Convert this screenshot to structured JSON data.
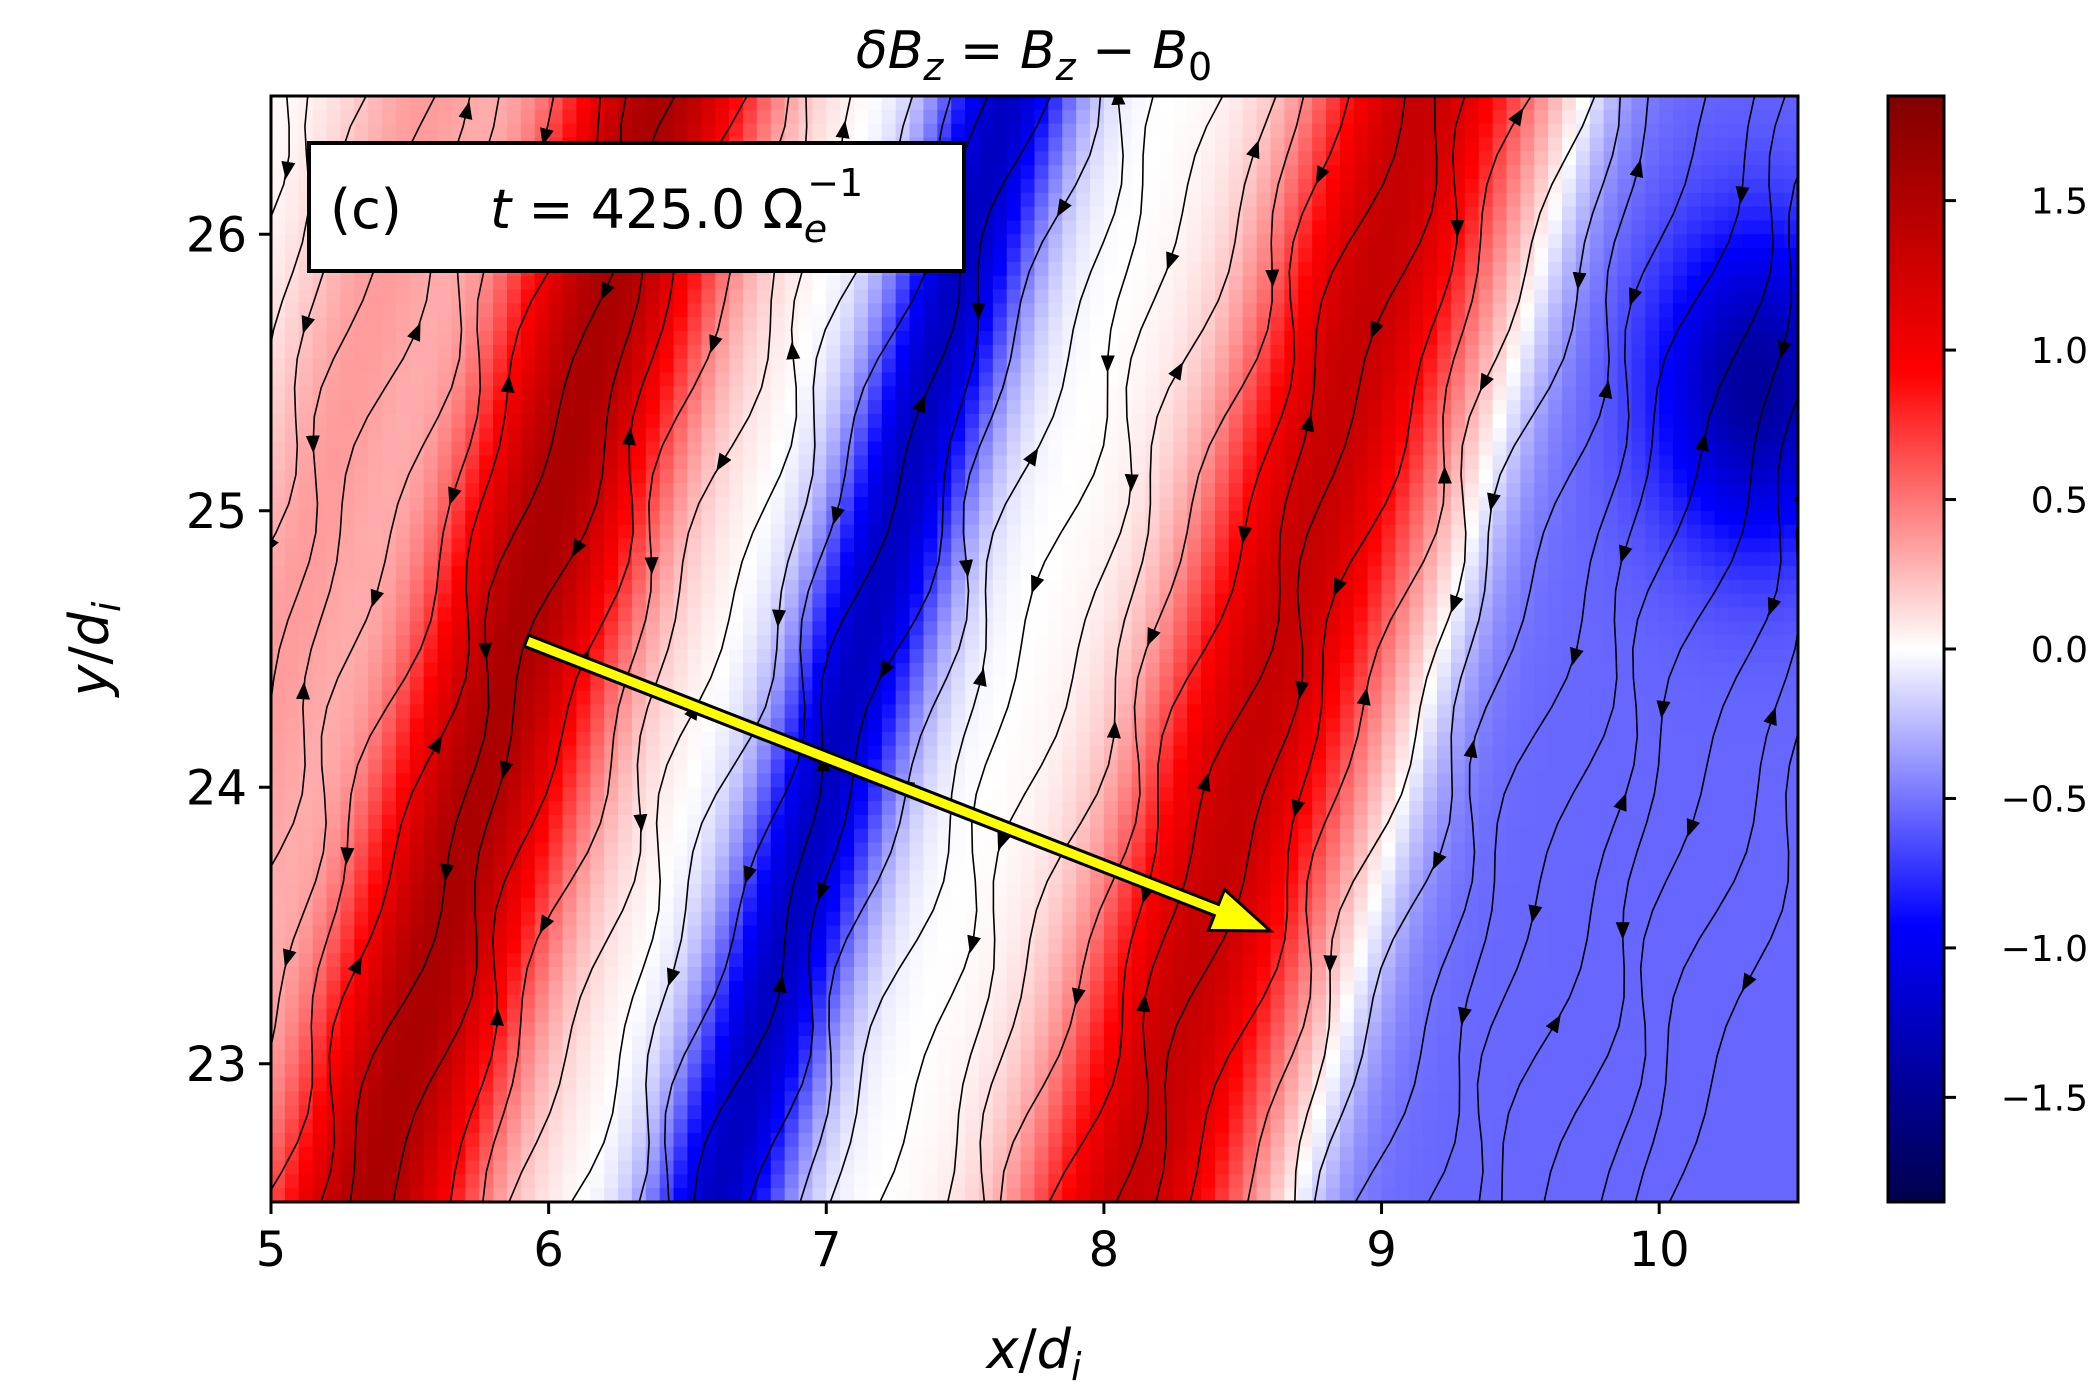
{
  "chart_data": {
    "type": "heatmap",
    "title": {
      "delta": "δ",
      "b1": "B",
      "z1": "z",
      "eq": " = ",
      "b2": "B",
      "z2": "z",
      "minus": " − ",
      "b3": "B",
      "zero": "0"
    },
    "xlabel": {
      "x": "x",
      "slash": "/",
      "d": "d",
      "i": "i"
    },
    "ylabel": {
      "y": "y",
      "slash": "/",
      "d": "d",
      "i": "i"
    },
    "xlim": [
      5,
      10.5
    ],
    "ylim": [
      22.5,
      26.5
    ],
    "x_ticks": [
      "5",
      "6",
      "7",
      "8",
      "9",
      "10"
    ],
    "y_ticks": [
      "23",
      "24",
      "25",
      "26"
    ],
    "colorbar": {
      "colormap": "seismic",
      "range": [
        -1.85,
        1.85
      ],
      "ticks": [
        "1.5",
        "1.0",
        "0.5",
        "0.0",
        "−0.5",
        "−1.0",
        "−1.5"
      ],
      "tick_values": [
        1.5,
        1.0,
        0.5,
        0.0,
        -0.5,
        -1.0,
        -1.5
      ]
    },
    "annotation": {
      "panel": "(c)",
      "t": "t",
      "eq": " = 425.0 ",
      "omega": "Ω",
      "e": "e",
      "exp": "−1"
    },
    "arrow": {
      "color": "#ffff00",
      "from": [
        5.92,
        24.53
      ],
      "to": [
        8.6,
        23.48
      ]
    },
    "streamline_color": "#000000",
    "colors": {
      "positive": "#ff0000",
      "negative": "#0000ff",
      "zero": "#ffffff"
    }
  }
}
